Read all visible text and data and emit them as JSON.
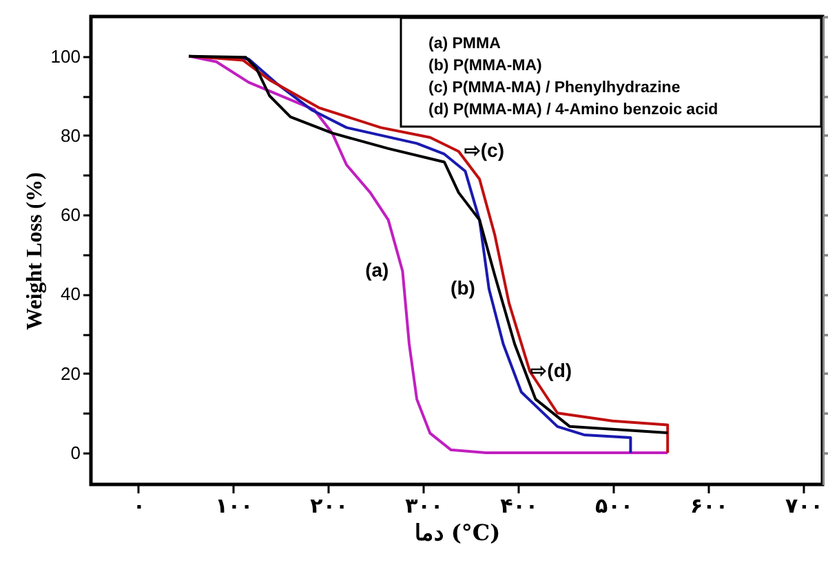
{
  "chart_data": {
    "type": "line",
    "xlabel": "دما (°C)",
    "ylabel": "Weight Loss (%)",
    "xlim": [
      -50,
      720
    ],
    "ylim": [
      -8,
      110
    ],
    "xticks": [
      {
        "value": 0,
        "label": "۰"
      },
      {
        "value": 100,
        "label": "۱۰۰"
      },
      {
        "value": 200,
        "label": "۲۰۰"
      },
      {
        "value": 300,
        "label": "۳۰۰"
      },
      {
        "value": 400,
        "label": "۴۰۰"
      },
      {
        "value": 500,
        "label": "۵۰۰"
      },
      {
        "value": 600,
        "label": "۶۰۰"
      },
      {
        "value": 700,
        "label": "۷۰۰"
      }
    ],
    "yticks": [
      0,
      {
        "value": 10,
        "label": null
      },
      20,
      {
        "value": 30,
        "label": null
      },
      40,
      {
        "value": 50,
        "label": null
      },
      60,
      {
        "value": 70,
        "label": null
      },
      80,
      {
        "value": 90,
        "label": null
      },
      100
    ],
    "grid": false,
    "marker": "none",
    "line_style": "solid",
    "series": [
      {
        "color": "#c020c0",
        "x": [
          53,
          82,
          116,
          185,
          204,
          219,
          244,
          263,
          278,
          285,
          293,
          307,
          329,
          366,
          557
        ],
        "values": [
          100,
          98.6,
          93.4,
          86.5,
          80.6,
          72.6,
          65.6,
          58.7,
          45.8,
          27.4,
          13.5,
          4.9,
          0.7,
          0,
          0
        ]
      },
      {
        "color": "#1a1ab0",
        "x": [
          53,
          116,
          146,
          182,
          219,
          293,
          322,
          344,
          359,
          369,
          384,
          403,
          441,
          469,
          518,
          518
        ],
        "values": [
          100,
          99.3,
          93,
          86.5,
          82,
          78,
          75.3,
          71,
          58.7,
          41.3,
          27.4,
          15.3,
          6.6,
          4.5,
          3.8,
          0
        ]
      },
      {
        "color": "#c01010",
        "x": [
          53,
          110,
          138,
          190,
          255,
          307,
          337,
          359,
          375,
          390,
          412,
          441,
          499,
          557,
          557
        ],
        "values": [
          100,
          99,
          94,
          87,
          82,
          79.5,
          76,
          69,
          55,
          37.8,
          20.5,
          10,
          8,
          7,
          0
        ]
      },
      {
        "color": "#000000",
        "x": [
          53,
          113,
          124,
          138,
          160,
          204,
          263,
          322,
          337,
          359,
          375,
          396,
          418,
          454,
          557
        ],
        "values": [
          100,
          99.7,
          97,
          90,
          84.7,
          80.6,
          76.7,
          73.3,
          65.6,
          58.7,
          44.8,
          27.4,
          13.5,
          6.6,
          5
        ]
      }
    ],
    "annotations": [
      "(a) PMMA",
      "(b) P(MMA-MA)",
      "(c) P(MMA-MA)  / Phenylhydrazine",
      "(d) P(MMA-MA)  / 4-Amino benzoic acid",
      {
        "text": "(a)",
        "x": 278,
        "y": 45.8
      },
      {
        "text": "(b)",
        "x": 369,
        "y": 41.3
      },
      {
        "text": "⇨(c)",
        "x": 337,
        "y": 76
      },
      {
        "text": "⇨(d)",
        "x": 407,
        "y": 20.5
      }
    ]
  }
}
